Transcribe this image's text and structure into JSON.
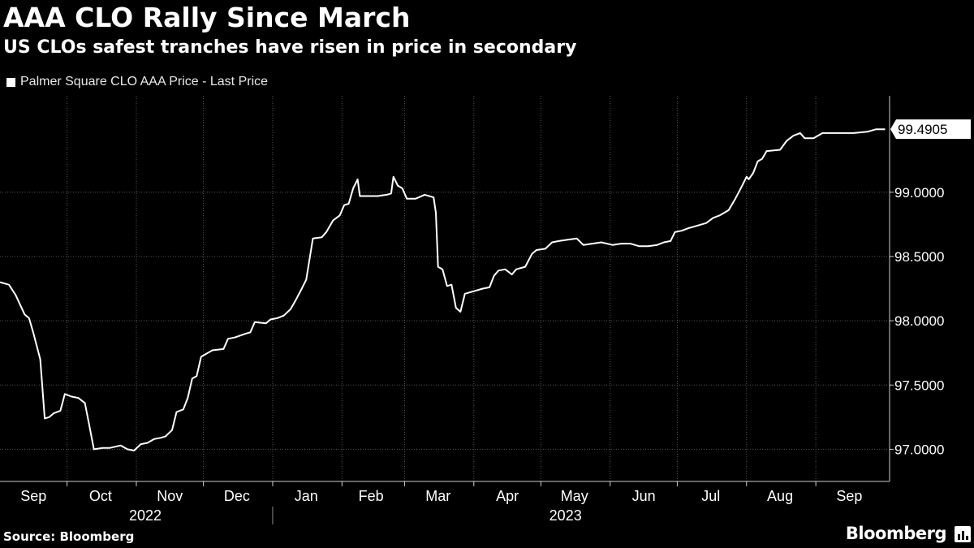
{
  "header": {
    "title": "AAA CLO Rally Since March",
    "subtitle": "US CLOs safest tranches have risen in price in secondary"
  },
  "footer": {
    "source": "Source: Bloomberg",
    "brand": "Bloomberg"
  },
  "icons": {
    "brand_mark": "bar-chart-icon"
  },
  "colors": {
    "background": "#000000",
    "line": "#ffffff",
    "grid": "#555555"
  },
  "chart_data": {
    "type": "line",
    "title": "AAA CLO Rally Since March",
    "subtitle": "US CLOs safest tranches have risen in price in secondary",
    "legend": "top-left",
    "grid": true,
    "series": [
      {
        "name": "Palmer Square CLO AAA Price - Last Price",
        "last_value_label": "99.4905",
        "points": [
          [
            "2022-09-01",
            98.3
          ],
          [
            "2022-09-05",
            98.28
          ],
          [
            "2022-09-08",
            98.2
          ],
          [
            "2022-09-12",
            98.05
          ],
          [
            "2022-09-14",
            98.02
          ],
          [
            "2022-09-16",
            97.9
          ],
          [
            "2022-09-19",
            97.7
          ],
          [
            "2022-09-21",
            97.24
          ],
          [
            "2022-09-23",
            97.25
          ],
          [
            "2022-09-25",
            97.28
          ],
          [
            "2022-09-28",
            97.3
          ],
          [
            "2022-09-30",
            97.43
          ],
          [
            "2022-10-03",
            97.41
          ],
          [
            "2022-10-06",
            97.4
          ],
          [
            "2022-10-09",
            97.36
          ],
          [
            "2022-10-11",
            97.18
          ],
          [
            "2022-10-13",
            97.0
          ],
          [
            "2022-10-17",
            97.01
          ],
          [
            "2022-10-20",
            97.01
          ],
          [
            "2022-10-25",
            97.03
          ],
          [
            "2022-10-28",
            97.0
          ],
          [
            "2022-10-31",
            96.99
          ],
          [
            "2022-11-03",
            97.04
          ],
          [
            "2022-11-06",
            97.05
          ],
          [
            "2022-11-09",
            97.08
          ],
          [
            "2022-11-12",
            97.09
          ],
          [
            "2022-11-14",
            97.1
          ],
          [
            "2022-11-17",
            97.15
          ],
          [
            "2022-11-19",
            97.29
          ],
          [
            "2022-11-22",
            97.31
          ],
          [
            "2022-11-24",
            97.4
          ],
          [
            "2022-11-26",
            97.55
          ],
          [
            "2022-11-28",
            97.57
          ],
          [
            "2022-11-30",
            97.72
          ],
          [
            "2022-12-02",
            97.74
          ],
          [
            "2022-12-05",
            97.77
          ],
          [
            "2022-12-10",
            97.78
          ],
          [
            "2022-12-12",
            97.86
          ],
          [
            "2022-12-15",
            97.87
          ],
          [
            "2022-12-20",
            97.9
          ],
          [
            "2022-12-22",
            97.91
          ],
          [
            "2022-12-24",
            97.99
          ],
          [
            "2022-12-29",
            97.98
          ],
          [
            "2022-12-31",
            98.01
          ],
          [
            "2023-01-03",
            98.02
          ],
          [
            "2023-01-06",
            98.04
          ],
          [
            "2023-01-09",
            98.09
          ],
          [
            "2023-01-11",
            98.15
          ],
          [
            "2023-01-14",
            98.25
          ],
          [
            "2023-01-16",
            98.32
          ],
          [
            "2023-01-19",
            98.64
          ],
          [
            "2023-01-23",
            98.65
          ],
          [
            "2023-01-25",
            98.69
          ],
          [
            "2023-01-28",
            98.78
          ],
          [
            "2023-01-31",
            98.82
          ],
          [
            "2023-02-02",
            98.9
          ],
          [
            "2023-02-04",
            98.91
          ],
          [
            "2023-02-06",
            99.03
          ],
          [
            "2023-02-08",
            99.1
          ],
          [
            "2023-02-09",
            98.97
          ],
          [
            "2023-02-13",
            98.97
          ],
          [
            "2023-02-17",
            98.97
          ],
          [
            "2023-02-21",
            98.98
          ],
          [
            "2023-02-23",
            98.99
          ],
          [
            "2023-02-24",
            99.12
          ],
          [
            "2023-02-26",
            99.05
          ],
          [
            "2023-02-28",
            99.03
          ],
          [
            "2023-03-02",
            98.95
          ],
          [
            "2023-03-06",
            98.95
          ],
          [
            "2023-03-10",
            98.98
          ],
          [
            "2023-03-14",
            98.96
          ],
          [
            "2023-03-15",
            98.84
          ],
          [
            "2023-03-16",
            98.42
          ],
          [
            "2023-03-18",
            98.4
          ],
          [
            "2023-03-20",
            98.27
          ],
          [
            "2023-03-22",
            98.28
          ],
          [
            "2023-03-24",
            98.1
          ],
          [
            "2023-03-26",
            98.07
          ],
          [
            "2023-03-28",
            98.21
          ],
          [
            "2023-04-01",
            98.23
          ],
          [
            "2023-04-05",
            98.25
          ],
          [
            "2023-04-08",
            98.26
          ],
          [
            "2023-04-10",
            98.35
          ],
          [
            "2023-04-12",
            98.39
          ],
          [
            "2023-04-15",
            98.4
          ],
          [
            "2023-04-18",
            98.36
          ],
          [
            "2023-04-20",
            98.4
          ],
          [
            "2023-04-24",
            98.42
          ],
          [
            "2023-04-27",
            98.52
          ],
          [
            "2023-04-29",
            98.55
          ],
          [
            "2023-05-03",
            98.56
          ],
          [
            "2023-05-06",
            98.61
          ],
          [
            "2023-05-09",
            98.62
          ],
          [
            "2023-05-13",
            98.63
          ],
          [
            "2023-05-17",
            98.64
          ],
          [
            "2023-05-20",
            98.59
          ],
          [
            "2023-05-24",
            98.6
          ],
          [
            "2023-05-28",
            98.61
          ],
          [
            "2023-06-02",
            98.59
          ],
          [
            "2023-06-06",
            98.6
          ],
          [
            "2023-06-10",
            98.6
          ],
          [
            "2023-06-14",
            98.58
          ],
          [
            "2023-06-18",
            98.58
          ],
          [
            "2023-06-22",
            98.59
          ],
          [
            "2023-06-25",
            98.61
          ],
          [
            "2023-06-28",
            98.62
          ],
          [
            "2023-06-30",
            98.69
          ],
          [
            "2023-07-03",
            98.7
          ],
          [
            "2023-07-06",
            98.72
          ],
          [
            "2023-07-10",
            98.74
          ],
          [
            "2023-07-14",
            98.76
          ],
          [
            "2023-07-17",
            98.8
          ],
          [
            "2023-07-20",
            98.82
          ],
          [
            "2023-07-24",
            98.86
          ],
          [
            "2023-07-27",
            98.95
          ],
          [
            "2023-07-30",
            99.05
          ],
          [
            "2023-08-01",
            99.12
          ],
          [
            "2023-08-02",
            99.1
          ],
          [
            "2023-08-04",
            99.15
          ],
          [
            "2023-08-06",
            99.24
          ],
          [
            "2023-08-08",
            99.26
          ],
          [
            "2023-08-10",
            99.32
          ],
          [
            "2023-08-16",
            99.33
          ],
          [
            "2023-08-19",
            99.4
          ],
          [
            "2023-08-22",
            99.44
          ],
          [
            "2023-08-25",
            99.46
          ],
          [
            "2023-08-27",
            99.42
          ],
          [
            "2023-08-31",
            99.42
          ],
          [
            "2023-09-04",
            99.46
          ],
          [
            "2023-09-10",
            99.46
          ],
          [
            "2023-09-18",
            99.46
          ],
          [
            "2023-09-24",
            99.47
          ],
          [
            "2023-09-28",
            99.49
          ],
          [
            "2023-10-02",
            99.49
          ]
        ]
      }
    ],
    "x_axis": {
      "type": "date",
      "range": [
        "2022-09-01",
        "2023-10-04"
      ],
      "month_labels": [
        {
          "label": "Sep",
          "center": "2022-09-16"
        },
        {
          "label": "Oct",
          "center": "2022-10-16"
        },
        {
          "label": "Nov",
          "center": "2022-11-16"
        },
        {
          "label": "Dec",
          "center": "2022-12-16"
        },
        {
          "label": "Jan",
          "center": "2023-01-16"
        },
        {
          "label": "Feb",
          "center": "2023-02-14"
        },
        {
          "label": "Mar",
          "center": "2023-03-16"
        },
        {
          "label": "Apr",
          "center": "2023-04-16"
        },
        {
          "label": "May",
          "center": "2023-05-16"
        },
        {
          "label": "Jun",
          "center": "2023-06-16"
        },
        {
          "label": "Jul",
          "center": "2023-07-16"
        },
        {
          "label": "Aug",
          "center": "2023-08-16"
        },
        {
          "label": "Sep",
          "center": "2023-09-16"
        }
      ],
      "month_ticks": [
        "2022-10-01",
        "2022-11-01",
        "2022-12-01",
        "2023-01-01",
        "2023-02-01",
        "2023-03-01",
        "2023-04-01",
        "2023-05-01",
        "2023-06-01",
        "2023-07-01",
        "2023-08-01",
        "2023-09-01"
      ],
      "year_labels": [
        {
          "label": "2022",
          "center": "2022-11-05"
        },
        {
          "label": "2023",
          "center": "2023-05-12"
        }
      ],
      "year_divider": "2023-01-01"
    },
    "y_axis": {
      "range": [
        96.75,
        99.75
      ],
      "ticks": [
        97.0,
        97.5,
        98.0,
        98.5,
        99.0
      ],
      "tick_labels": [
        "97.0000",
        "97.5000",
        "98.0000",
        "98.5000",
        "99.0000"
      ]
    }
  }
}
